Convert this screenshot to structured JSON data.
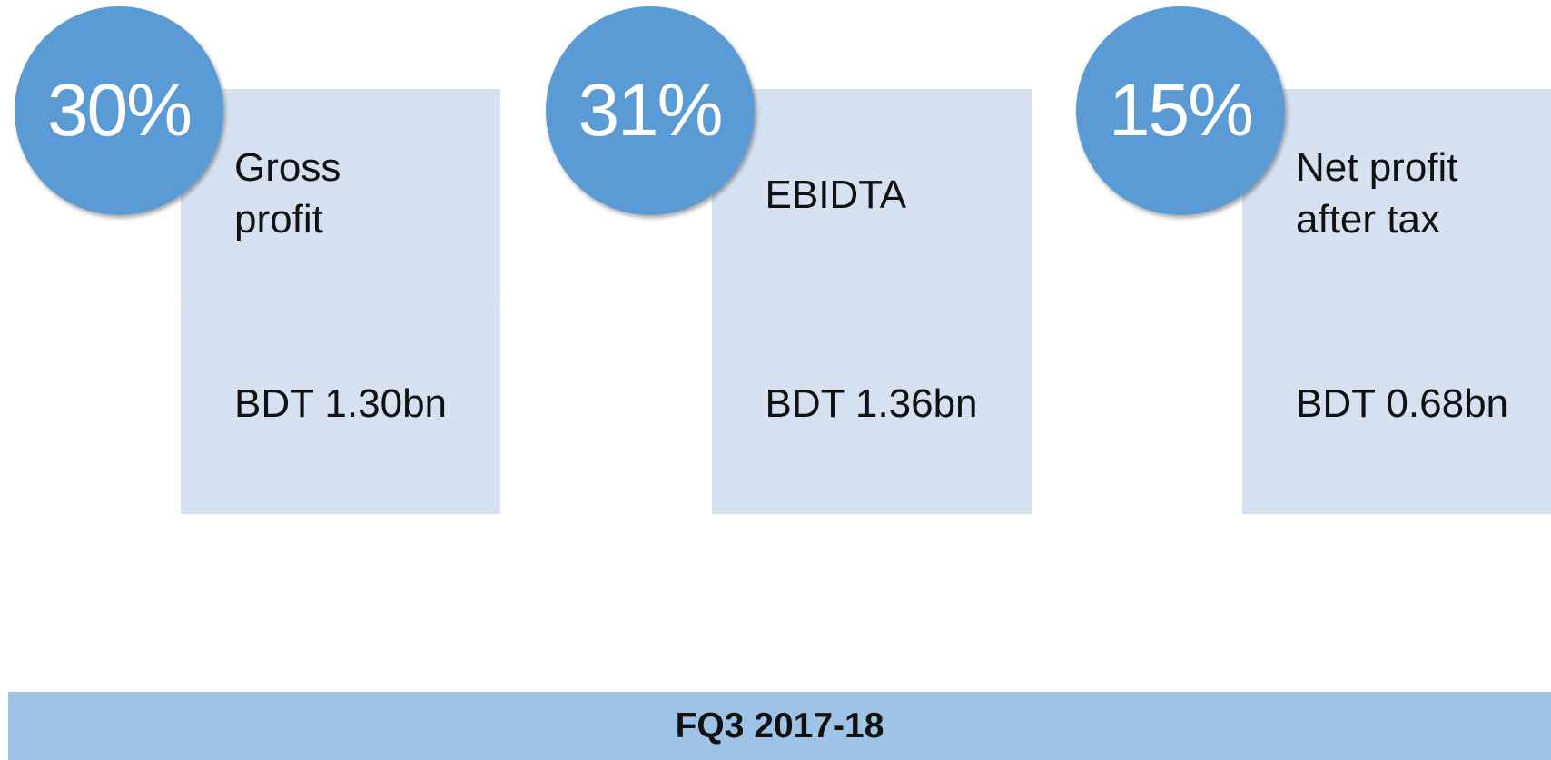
{
  "cards": [
    {
      "percent": "30%",
      "label_lines": [
        "Gross",
        "profit"
      ],
      "value": "BDT 1.30bn"
    },
    {
      "percent": "31%",
      "label_lines": [
        "EBIDTA"
      ],
      "value": "BDT 1.36bn"
    },
    {
      "percent": "15%",
      "label_lines": [
        "Net profit",
        "after tax"
      ],
      "value": "BDT 0.68bn"
    }
  ],
  "footer": {
    "title": "FQ3 2017-18"
  }
}
